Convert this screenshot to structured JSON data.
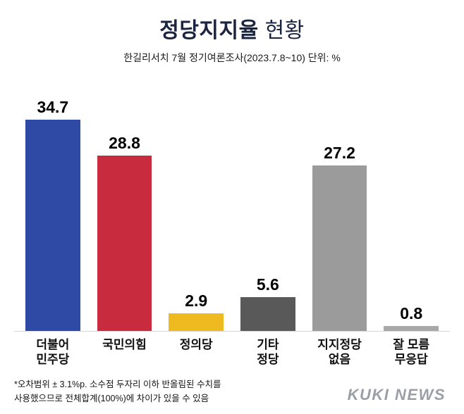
{
  "title": {
    "main": "정당지지율",
    "sub": "현황"
  },
  "subtitle": "한길리서치 7월 정기여론조사(2023.7.8~10) 단위: %",
  "footnote": "*오차범위 ± 3.1%p. 소수점 두자리 이하 반올림된 수치를\n사용했으므로 전체합계(100%)에 차이가 있을 수 있음",
  "logo": "KUKI NEWS",
  "chart_data": {
    "type": "bar",
    "title": "정당지지율 현황",
    "subtitle": "한길리서치 7월 정기여론조사(2023.7.8~10) 단위: %",
    "categories": [
      "더불어\n민주당",
      "국민의힘",
      "정의당",
      "기타\n정당",
      "지지정당\n없음",
      "잘 모름\n무응답"
    ],
    "values": [
      34.7,
      28.8,
      2.9,
      5.6,
      27.2,
      0.8
    ],
    "colors": [
      "#2e4aa5",
      "#c82b3d",
      "#efb920",
      "#595959",
      "#9b9b9b",
      "#a8a8a8"
    ],
    "unit": "%",
    "ylim": [
      0,
      36
    ],
    "grid": false,
    "value_labels": "above-bars",
    "legend": "none"
  }
}
